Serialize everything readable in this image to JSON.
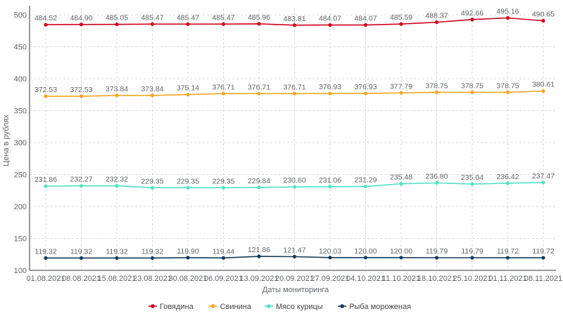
{
  "chart_data": {
    "type": "line",
    "xlabel": "Даты мониторинга",
    "ylabel": "Цена в рублях",
    "ylim": [
      100,
      510
    ],
    "yticks": [
      100,
      150,
      200,
      250,
      300,
      350,
      400,
      450,
      500
    ],
    "grid": true,
    "legend_position": "bottom",
    "categories": [
      "01.08.2021",
      "08.08.2021",
      "15.08.2021",
      "23.08.2021",
      "30.08.2021",
      "06.09.2021",
      "13.09.2021",
      "20.09.2021",
      "27.09.2021",
      "04.10.2021",
      "11.10.2021",
      "18.10.2021",
      "25.10.2021",
      "01.11.2021",
      "08.11.2021"
    ],
    "series": [
      {
        "name": "Говядина",
        "color": "#d0021b",
        "values": [
          484.52,
          484.9,
          485.05,
          485.47,
          485.47,
          485.47,
          485.96,
          483.81,
          484.07,
          484.07,
          485.59,
          488.37,
          492.66,
          495.16,
          490.65
        ]
      },
      {
        "name": "Свинина",
        "color": "#f5a623",
        "values": [
          372.53,
          372.53,
          373.84,
          373.84,
          375.14,
          376.71,
          376.71,
          376.71,
          376.93,
          376.93,
          377.79,
          378.75,
          378.75,
          378.75,
          380.61
        ]
      },
      {
        "name": "Мясо курицы",
        "color": "#50e3c2",
        "values": [
          231.86,
          232.27,
          232.32,
          229.35,
          229.35,
          229.35,
          229.84,
          230.6,
          231.06,
          231.29,
          235.48,
          236.8,
          235.04,
          236.42,
          237.47
        ]
      },
      {
        "name": "Рыба мороженая",
        "color": "#163a59",
        "values": [
          119.32,
          119.32,
          119.32,
          119.32,
          119.9,
          119.44,
          121.86,
          121.47,
          120.03,
          120.0,
          120.0,
          119.79,
          119.79,
          119.72,
          119.72
        ]
      }
    ]
  }
}
